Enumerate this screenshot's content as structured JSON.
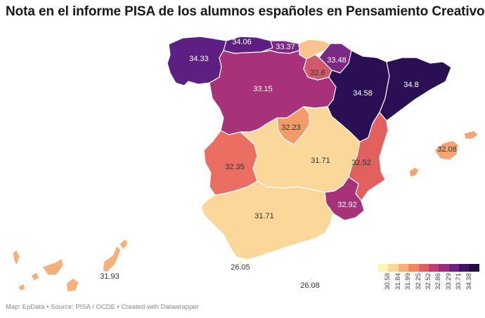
{
  "title": "Nota en el informe PISA de los alumnos españoles en Pensamiento Creativo",
  "footer": "Map: EpData • Source: PISA / OCDE • Created with Datawrapper",
  "legend": {
    "colors": [
      "#fcf7b3",
      "#fbd89a",
      "#f9ad79",
      "#f08762",
      "#dd6063",
      "#bf3f73",
      "#962e7c",
      "#6b2286",
      "#3f1560",
      "#1f0e44"
    ],
    "ticks": [
      "30.58",
      "31.84",
      "31.99",
      "32.25",
      "32.52",
      "32.86",
      "33.29",
      "33.71",
      "34.38"
    ]
  },
  "regions": [
    {
      "name": "Galicia",
      "value": "34.33",
      "color": "#5e1f82"
    },
    {
      "name": "Asturias",
      "value": "34.06",
      "color": "#5e1f82"
    },
    {
      "name": "Cantabria",
      "value": "33.37",
      "color": "#7a2a84"
    },
    {
      "name": "País Vasco",
      "value": "",
      "color": "#fbc48c"
    },
    {
      "name": "Navarra",
      "value": "33.48",
      "color": "#7a2a84"
    },
    {
      "name": "La Rioja",
      "value": "32.6",
      "color": "#d2586b"
    },
    {
      "name": "Aragón",
      "value": "33.15",
      "color": "#a7327a"
    },
    {
      "name": "Cataluña",
      "value": "32.23",
      "color": "#f39a69"
    },
    {
      "name": "Castilla y León",
      "value": "34.58",
      "color": "#2b0f55"
    },
    {
      "name": "Madrid",
      "value": "34.8",
      "color": "#2b0f55"
    },
    {
      "name": "Castilla-La Mancha",
      "value": "31.71",
      "color": "#fbd89a"
    },
    {
      "name": "Extremadura",
      "value": "32.35",
      "color": "#ea6f62"
    },
    {
      "name": "Comunidad Valenciana",
      "value": "32.52",
      "color": "#e2615f"
    },
    {
      "name": "Murcia",
      "value": "32.92",
      "color": "#a7327a"
    },
    {
      "name": "Andalucía",
      "value": "31.71",
      "color": "#fbd89a"
    },
    {
      "name": "Islas Baleares",
      "value": "32.08",
      "color": "#f6a473"
    },
    {
      "name": "Canarias",
      "value": "31.93",
      "color": "#f8b079"
    },
    {
      "name": "Ceuta",
      "value": "26.05",
      "color": "#fcf7b3"
    },
    {
      "name": "Melilla",
      "value": "26.08",
      "color": "#fcf7b3"
    }
  ]
}
